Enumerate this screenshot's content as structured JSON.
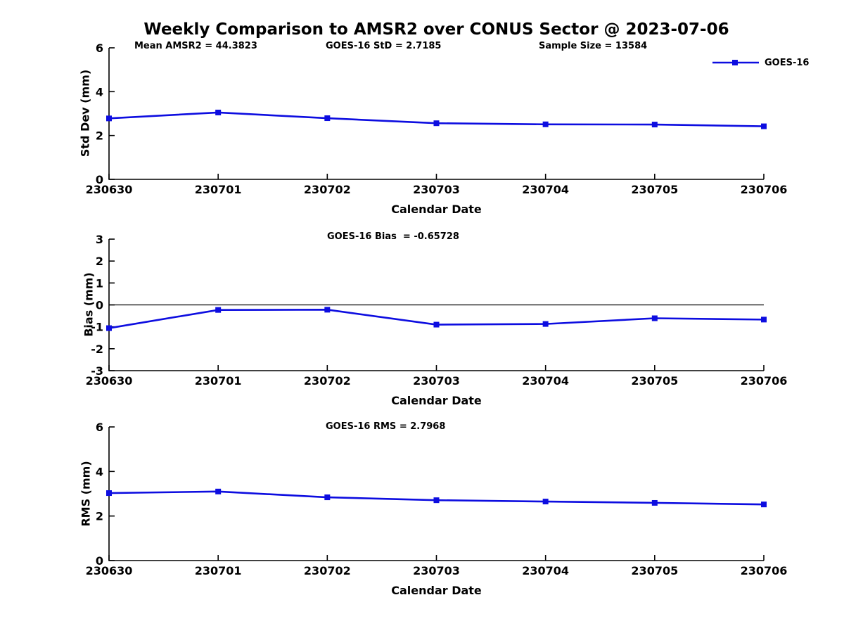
{
  "title": "Weekly Comparison to AMSR2 over CONUS Sector @ 2023-07-06",
  "legend": {
    "label": "GOES-16"
  },
  "colors": {
    "series": "#0D0DE0",
    "axis": "#000000",
    "zero_line": "#000000"
  },
  "chart_data": [
    {
      "type": "line",
      "id": "std-dev",
      "annotations": [
        "Mean AMSR2 = 44.3823",
        "GOES-16 StD = 2.7185",
        "Sample Size = 13584"
      ],
      "ylabel": "Std Dev (mm)",
      "xlabel": "Calendar Date",
      "categories": [
        "230630",
        "230701",
        "230702",
        "230703",
        "230704",
        "230705",
        "230706"
      ],
      "ylim": [
        0,
        6
      ],
      "yticks": [
        0,
        2,
        4,
        6
      ],
      "zero_line": false,
      "grid": false,
      "legend_position": "top-right",
      "series": [
        {
          "name": "GOES-16",
          "color": "#0D0DE0",
          "marker": "square",
          "values": [
            2.78,
            3.05,
            2.79,
            2.56,
            2.51,
            2.5,
            2.42
          ]
        }
      ]
    },
    {
      "type": "line",
      "id": "bias",
      "annotations": [
        "GOES-16 Bias  = -0.65728"
      ],
      "ylabel": "Bias (mm)",
      "xlabel": "Calendar Date",
      "categories": [
        "230630",
        "230701",
        "230702",
        "230703",
        "230704",
        "230705",
        "230706"
      ],
      "ylim": [
        -3,
        3
      ],
      "yticks": [
        -3,
        -2,
        -1,
        0,
        1,
        2,
        3
      ],
      "zero_line": true,
      "grid": false,
      "series": [
        {
          "name": "GOES-16",
          "color": "#0D0DE0",
          "marker": "square",
          "values": [
            -1.06,
            -0.23,
            -0.22,
            -0.9,
            -0.87,
            -0.61,
            -0.67
          ]
        }
      ]
    },
    {
      "type": "line",
      "id": "rms",
      "annotations": [
        "GOES-16 RMS = 2.7968"
      ],
      "ylabel": "RMS (mm)",
      "xlabel": "Calendar Date",
      "categories": [
        "230630",
        "230701",
        "230702",
        "230703",
        "230704",
        "230705",
        "230706"
      ],
      "ylim": [
        0,
        6
      ],
      "yticks": [
        0,
        2,
        4,
        6
      ],
      "zero_line": false,
      "grid": false,
      "series": [
        {
          "name": "GOES-16",
          "color": "#0D0DE0",
          "marker": "square",
          "values": [
            3.03,
            3.1,
            2.84,
            2.71,
            2.65,
            2.59,
            2.52
          ]
        }
      ]
    }
  ]
}
